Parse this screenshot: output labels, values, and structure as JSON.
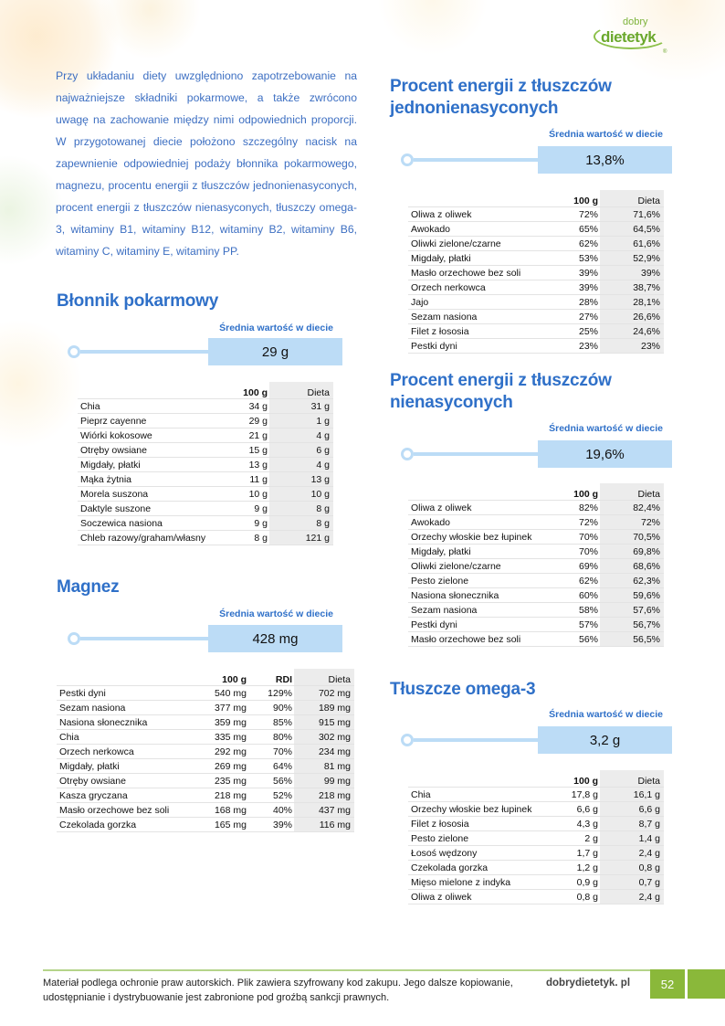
{
  "brand": {
    "logo_text_top": "dobry",
    "logo_text_main": "dietetyk",
    "logo_mark": "®"
  },
  "intro": "Przy układaniu diety uwzględniono zapotrzebowanie na najważniejsze składniki pokarmowe, a także zwrócono uwagę na zachowanie między nimi odpowiednich proporcji. W przygotowanej diecie położono szczególny nacisk na zapewnienie odpowiedniej podaży błonnika pokarmowego, magnezu, procentu energii z tłuszczów jednonienasyconych, procent energii z tłuszczów nienasyconych, tłuszczy omega-3, witaminy B1, witaminy B12, witaminy B2, witaminy B6, witaminy C, witaminy E, witaminy PP.",
  "colors": {
    "heading": "#2f70c8",
    "stat_box": "#bcdcf6",
    "footer_green": "#8ab83a"
  },
  "sections": [
    {
      "id": "fibre",
      "title": "Błonnik pokarmowy",
      "stat_label": "Średnia wartość w diecie",
      "stat_value": "29 g",
      "columns": [
        "",
        "100 g",
        "Dieta"
      ],
      "rows": [
        [
          "Chia",
          "34 g",
          "31 g"
        ],
        [
          "Pieprz cayenne",
          "29 g",
          "1 g"
        ],
        [
          "Wiórki kokosowe",
          "21 g",
          "4 g"
        ],
        [
          "Otręby owsiane",
          "15 g",
          "6 g"
        ],
        [
          "Migdały, płatki",
          "13 g",
          "4 g"
        ],
        [
          "Mąka żytnia",
          "11 g",
          "13 g"
        ],
        [
          "Morela suszona",
          "10 g",
          "10 g"
        ],
        [
          "Daktyle suszone",
          "9 g",
          "8 g"
        ],
        [
          "Soczewica nasiona",
          "9 g",
          "8 g"
        ],
        [
          "Chleb razowy/graham/własny",
          "8 g",
          "121 g"
        ]
      ]
    },
    {
      "id": "magnez",
      "title": "Magnez",
      "stat_label": "Średnia wartość w diecie",
      "stat_value": "428 mg",
      "columns": [
        "",
        "100 g",
        "RDI",
        "Dieta"
      ],
      "rows": [
        [
          "Pestki dyni",
          "540 mg",
          "129%",
          "702 mg"
        ],
        [
          "Sezam nasiona",
          "377 mg",
          "90%",
          "189 mg"
        ],
        [
          "Nasiona słonecznika",
          "359 mg",
          "85%",
          "915 mg"
        ],
        [
          "Chia",
          "335 mg",
          "80%",
          "302 mg"
        ],
        [
          "Orzech nerkowca",
          "292 mg",
          "70%",
          "234 mg"
        ],
        [
          "Migdały, płatki",
          "269 mg",
          "64%",
          "81 mg"
        ],
        [
          "Otręby owsiane",
          "235 mg",
          "56%",
          "99 mg"
        ],
        [
          "Kasza gryczana",
          "218 mg",
          "52%",
          "218 mg"
        ],
        [
          "Masło orzechowe bez soli",
          "168 mg",
          "40%",
          "437 mg"
        ],
        [
          "Czekolada gorzka",
          "165 mg",
          "39%",
          "116 mg"
        ]
      ]
    },
    {
      "id": "mufa",
      "title": "Procent energii z tłuszczów jednonienasyconych",
      "stat_label": "Średnia wartość w diecie",
      "stat_value": "13,8%",
      "columns": [
        "",
        "100 g",
        "Dieta"
      ],
      "rows": [
        [
          "Oliwa z oliwek",
          "72%",
          "71,6%"
        ],
        [
          "Awokado",
          "65%",
          "64,5%"
        ],
        [
          "Oliwki zielone/czarne",
          "62%",
          "61,6%"
        ],
        [
          "Migdały, płatki",
          "53%",
          "52,9%"
        ],
        [
          "Masło orzechowe bez soli",
          "39%",
          "39%"
        ],
        [
          "Orzech nerkowca",
          "39%",
          "38,7%"
        ],
        [
          "Jajo",
          "28%",
          "28,1%"
        ],
        [
          "Sezam nasiona",
          "27%",
          "26,6%"
        ],
        [
          "Filet z łososia",
          "25%",
          "24,6%"
        ],
        [
          "Pestki dyni",
          "23%",
          "23%"
        ]
      ]
    },
    {
      "id": "ufa",
      "title": "Procent energii z tłuszczów nienasyconych",
      "stat_label": "Średnia wartość w diecie",
      "stat_value": "19,6%",
      "columns": [
        "",
        "100 g",
        "Dieta"
      ],
      "rows": [
        [
          "Oliwa z oliwek",
          "82%",
          "82,4%"
        ],
        [
          "Awokado",
          "72%",
          "72%"
        ],
        [
          "Orzechy włoskie bez łupinek",
          "70%",
          "70,5%"
        ],
        [
          "Migdały, płatki",
          "70%",
          "69,8%"
        ],
        [
          "Oliwki zielone/czarne",
          "69%",
          "68,6%"
        ],
        [
          "Pesto zielone",
          "62%",
          "62,3%"
        ],
        [
          "Nasiona słonecznika",
          "60%",
          "59,6%"
        ],
        [
          "Sezam nasiona",
          "58%",
          "57,6%"
        ],
        [
          "Pestki dyni",
          "57%",
          "56,7%"
        ],
        [
          "Masło orzechowe bez soli",
          "56%",
          "56,5%"
        ]
      ]
    },
    {
      "id": "omega",
      "title": "Tłuszcze omega-3",
      "stat_label": "Średnia wartość w diecie",
      "stat_value": "3,2 g",
      "columns": [
        "",
        "100 g",
        "Dieta"
      ],
      "rows": [
        [
          "Chia",
          "17,8 g",
          "16,1 g"
        ],
        [
          "Orzechy włoskie bez łupinek",
          "6,6 g",
          "6,6 g"
        ],
        [
          "Filet z łososia",
          "4,3 g",
          "8,7 g"
        ],
        [
          "Pesto zielone",
          "2 g",
          "1,4 g"
        ],
        [
          "Łosoś wędzony",
          "1,7 g",
          "2,4 g"
        ],
        [
          "Czekolada gorzka",
          "1,2 g",
          "0,8 g"
        ],
        [
          "Mięso mielone z indyka",
          "0,9 g",
          "0,7 g"
        ],
        [
          "Oliwa z oliwek",
          "0,8 g",
          "2,4 g"
        ]
      ]
    }
  ],
  "footer": {
    "notice": "Materiał podlega ochronie praw autorskich. Plik zawiera szyfrowany kod zakupu. Jego dalsze kopiowanie, udostępnianie i dystrybuowanie jest zabronione pod groźbą sankcji prawnych.",
    "site": "dobrydietetyk. pl",
    "page_number": "52"
  }
}
